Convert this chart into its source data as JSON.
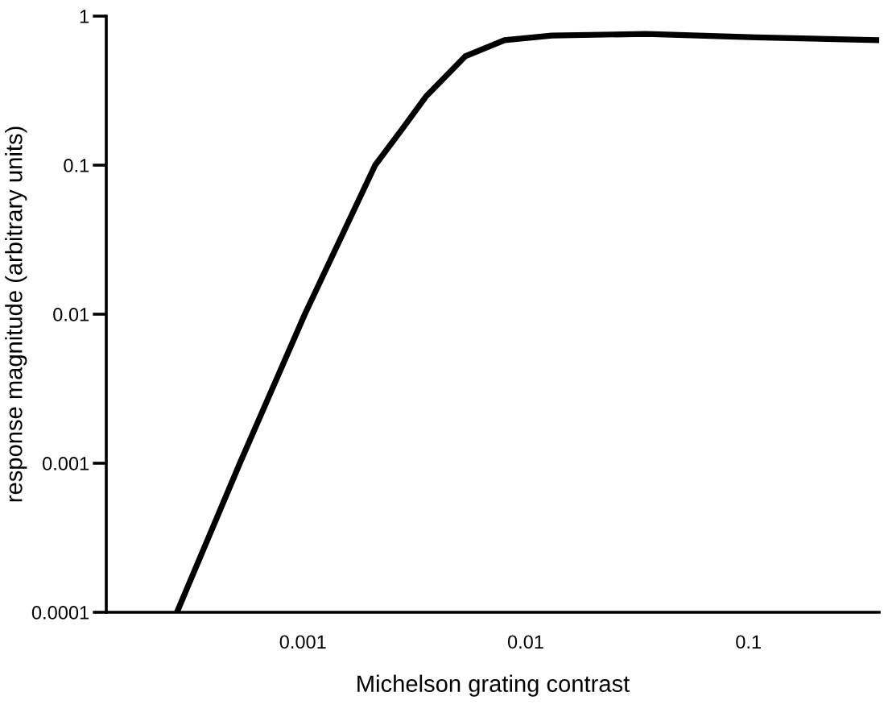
{
  "chart_data": {
    "type": "line",
    "xlabel": "Michelson grating contrast",
    "ylabel": "response magnitude (arbitrary units)",
    "log": "xy",
    "grid": false,
    "legend": false,
    "marker": "none",
    "line_style": "solid",
    "xlim": [
      0.000131,
      0.386
    ],
    "ylim": [
      0.0001,
      1
    ],
    "xticks": [
      {
        "value": 0.001,
        "label": "0.001"
      },
      {
        "value": 0.01,
        "label": "0.01"
      },
      {
        "value": 0.1,
        "label": "0.1"
      }
    ],
    "yticks": [
      {
        "value": 0.0001,
        "label": "0.0001"
      },
      {
        "value": 0.001,
        "label": "0.001"
      },
      {
        "value": 0.01,
        "label": "0.01"
      },
      {
        "value": 0.1,
        "label": "0.1"
      },
      {
        "value": 1,
        "label": "1"
      }
    ],
    "x": [
      0.000272,
      0.000521,
      0.00102,
      0.00211,
      0.00279,
      0.00356,
      0.00535,
      0.00803,
      0.0131,
      0.0348,
      0.108,
      0.386
    ],
    "series": [
      {
        "color": "#000000",
        "values": [
          0.0001,
          0.001,
          0.01,
          0.1,
          0.175,
          0.288,
          0.537,
          0.69,
          0.74,
          0.76,
          0.72,
          0.69
        ]
      }
    ]
  }
}
